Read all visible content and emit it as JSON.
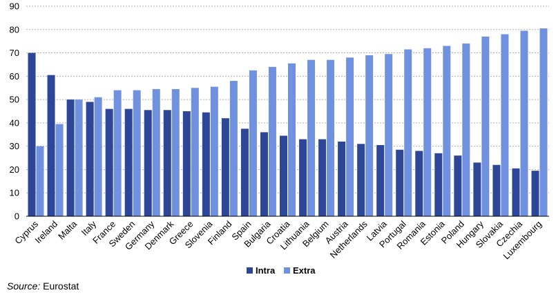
{
  "chart_data": {
    "type": "bar",
    "categories": [
      "Cyprus",
      "Ireland",
      "Malta",
      "Italy",
      "France",
      "Sweden",
      "Germany",
      "Denmark",
      "Greece",
      "Slovenia",
      "Finland",
      "Spain",
      "Bulgaria",
      "Croatia",
      "Lithuania",
      "Belgium",
      "Austria",
      "Netherlands",
      "Latvia",
      "Portugal",
      "Romania",
      "Estonia",
      "Poland",
      "Hungary",
      "Slovakia",
      "Czechia",
      "Luxembourg"
    ],
    "series": [
      {
        "name": "Intra",
        "color": "#2E4697",
        "values": [
          70,
          60.5,
          50,
          49,
          46,
          46,
          45.5,
          45.5,
          45,
          44.5,
          42,
          37.5,
          36,
          34.5,
          33,
          33,
          32,
          31,
          30.5,
          28.5,
          28,
          27,
          26,
          23,
          22,
          20.5,
          19.5
        ]
      },
      {
        "name": "Extra",
        "color": "#7090E0",
        "values": [
          30,
          39.5,
          50,
          51,
          54,
          54,
          54.5,
          54.5,
          55,
          55.5,
          58,
          62.5,
          64,
          65.5,
          67,
          67,
          68,
          69,
          69.5,
          71.5,
          72,
          73,
          74,
          77,
          78,
          79.5,
          80.5
        ]
      }
    ],
    "yticks": [
      0,
      10,
      20,
      30,
      40,
      50,
      60,
      70,
      80,
      90
    ],
    "ylim": [
      0,
      90
    ],
    "grid": true,
    "legend_position": "bottom"
  },
  "source": {
    "label": "Source:",
    "text": "Eurostat"
  }
}
